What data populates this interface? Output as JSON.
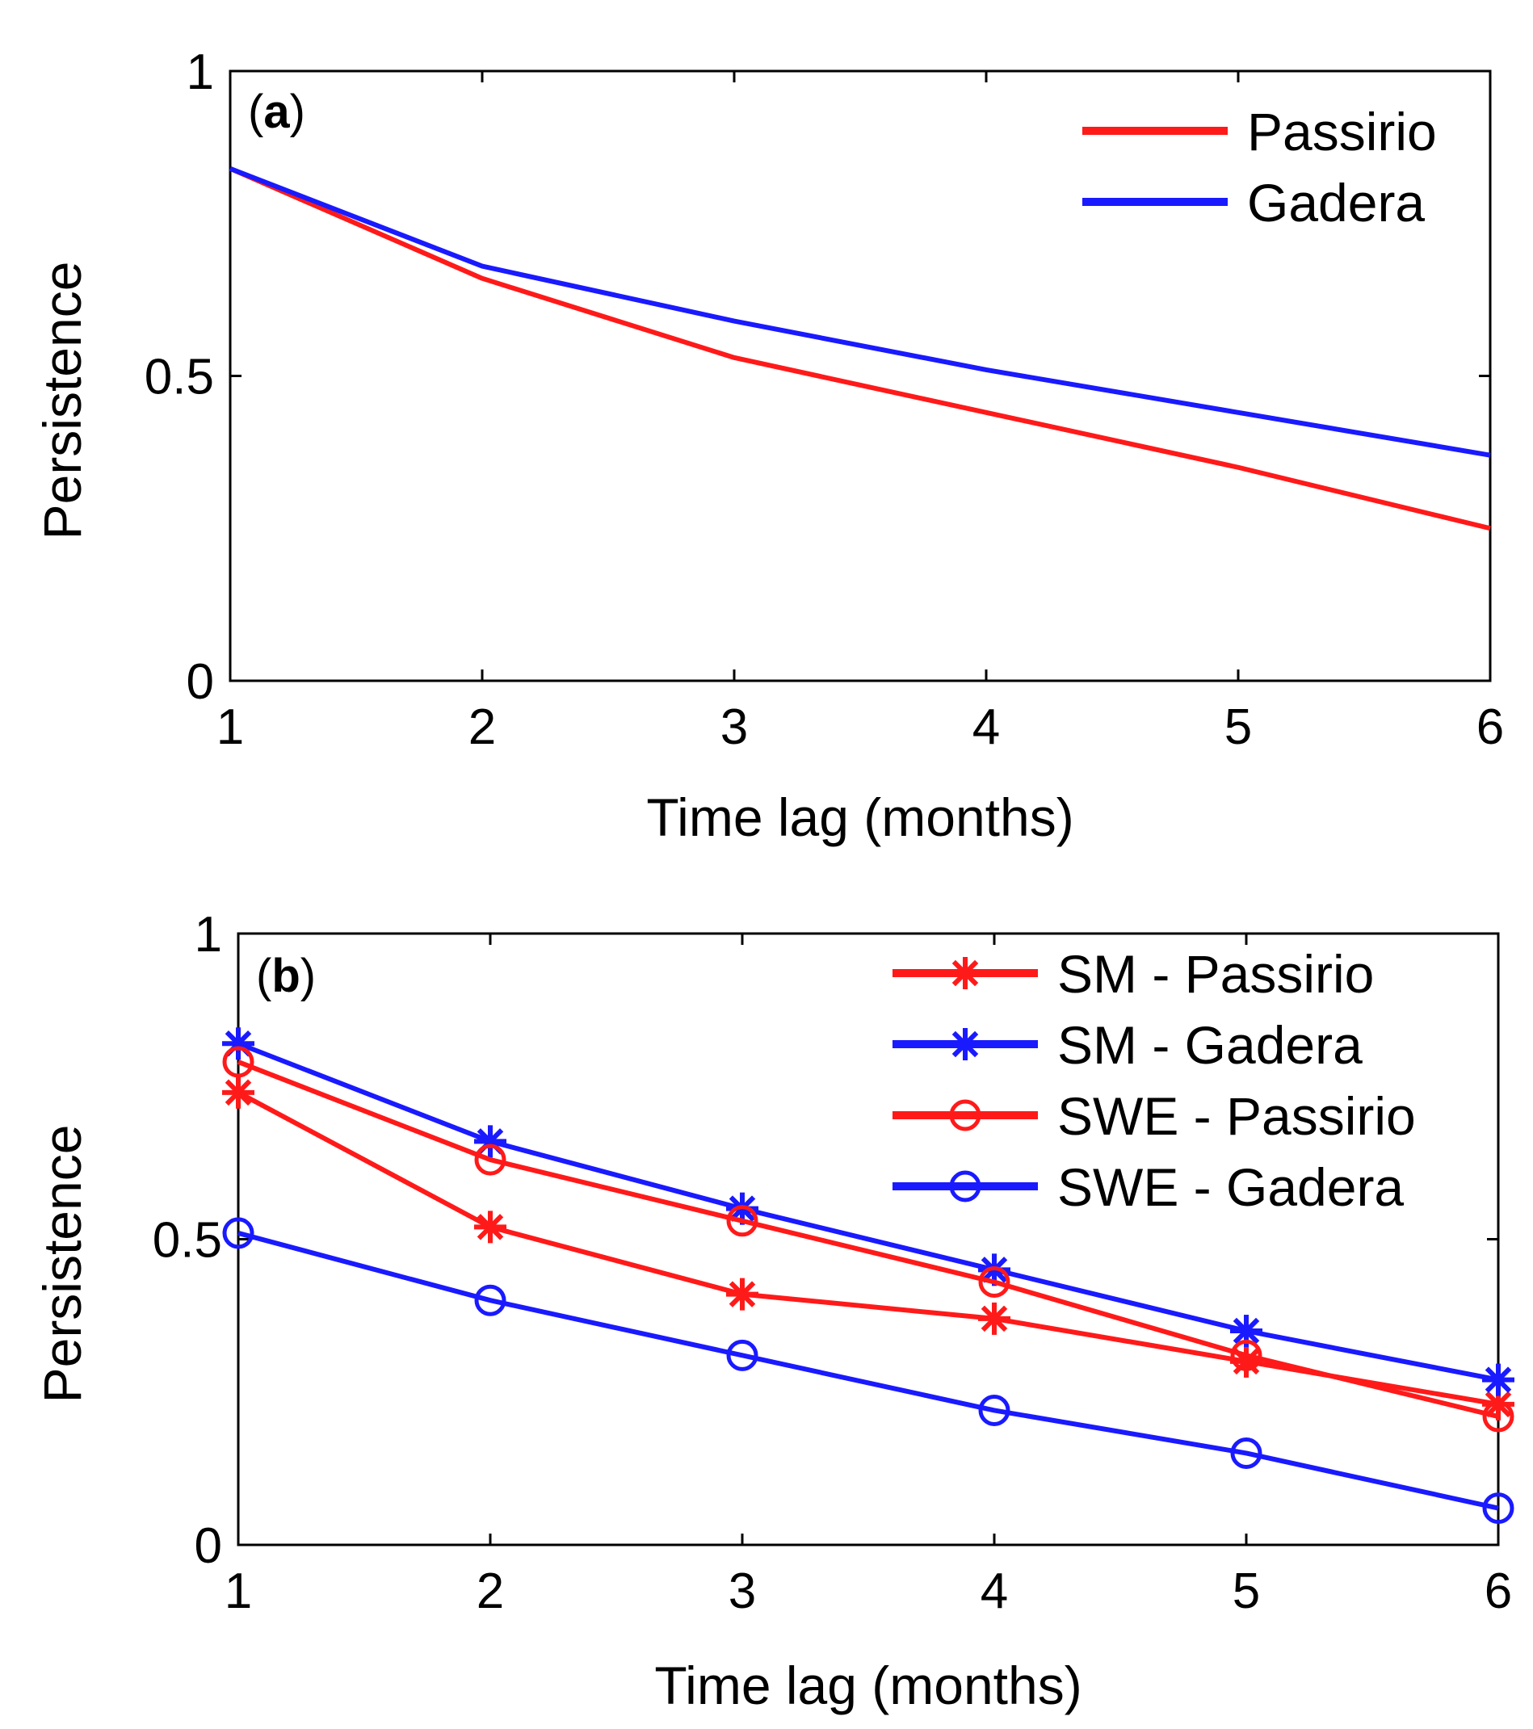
{
  "chart_data": [
    {
      "type": "line",
      "panel_label": "a",
      "title": "",
      "xlabel": "Time lag (months)",
      "ylabel": "Persistence",
      "xlim": [
        1,
        6
      ],
      "ylim": [
        0,
        1
      ],
      "x": [
        1,
        2,
        3,
        4,
        5,
        6
      ],
      "x_ticks": [
        "1",
        "2",
        "3",
        "4",
        "5",
        "6"
      ],
      "y_ticks": [
        "0",
        "0.5",
        "1"
      ],
      "legend_position": "top-right",
      "grid": false,
      "series": [
        {
          "name": "Passirio",
          "color": "#ff1a1a",
          "marker": "none",
          "values": [
            0.84,
            0.66,
            0.53,
            0.44,
            0.35,
            0.25
          ]
        },
        {
          "name": "Gadera",
          "color": "#1a1aff",
          "marker": "none",
          "values": [
            0.84,
            0.68,
            0.59,
            0.51,
            0.44,
            0.37
          ]
        }
      ]
    },
    {
      "type": "line",
      "panel_label": "b",
      "title": "",
      "xlabel": "Time lag (months)",
      "ylabel": "Persistence",
      "xlim": [
        1,
        6
      ],
      "ylim": [
        0,
        1
      ],
      "x": [
        1,
        2,
        3,
        4,
        5,
        6
      ],
      "x_ticks": [
        "1",
        "2",
        "3",
        "4",
        "5",
        "6"
      ],
      "y_ticks": [
        "0",
        "0.5",
        "1"
      ],
      "legend_position": "top-right",
      "grid": false,
      "series": [
        {
          "name": "SM - Passirio",
          "color": "#ff1a1a",
          "marker": "star",
          "values": [
            0.74,
            0.52,
            0.41,
            0.37,
            0.3,
            0.23
          ]
        },
        {
          "name": "SM - Gadera",
          "color": "#1a1aff",
          "marker": "star",
          "values": [
            0.82,
            0.66,
            0.55,
            0.45,
            0.35,
            0.27
          ]
        },
        {
          "name": "SWE - Passirio",
          "color": "#ff1a1a",
          "marker": "circle",
          "values": [
            0.79,
            0.63,
            0.53,
            0.43,
            0.31,
            0.21
          ]
        },
        {
          "name": "SWE - Gadera",
          "color": "#1a1aff",
          "marker": "circle",
          "values": [
            0.51,
            0.4,
            0.31,
            0.22,
            0.15,
            0.06
          ]
        }
      ]
    }
  ]
}
